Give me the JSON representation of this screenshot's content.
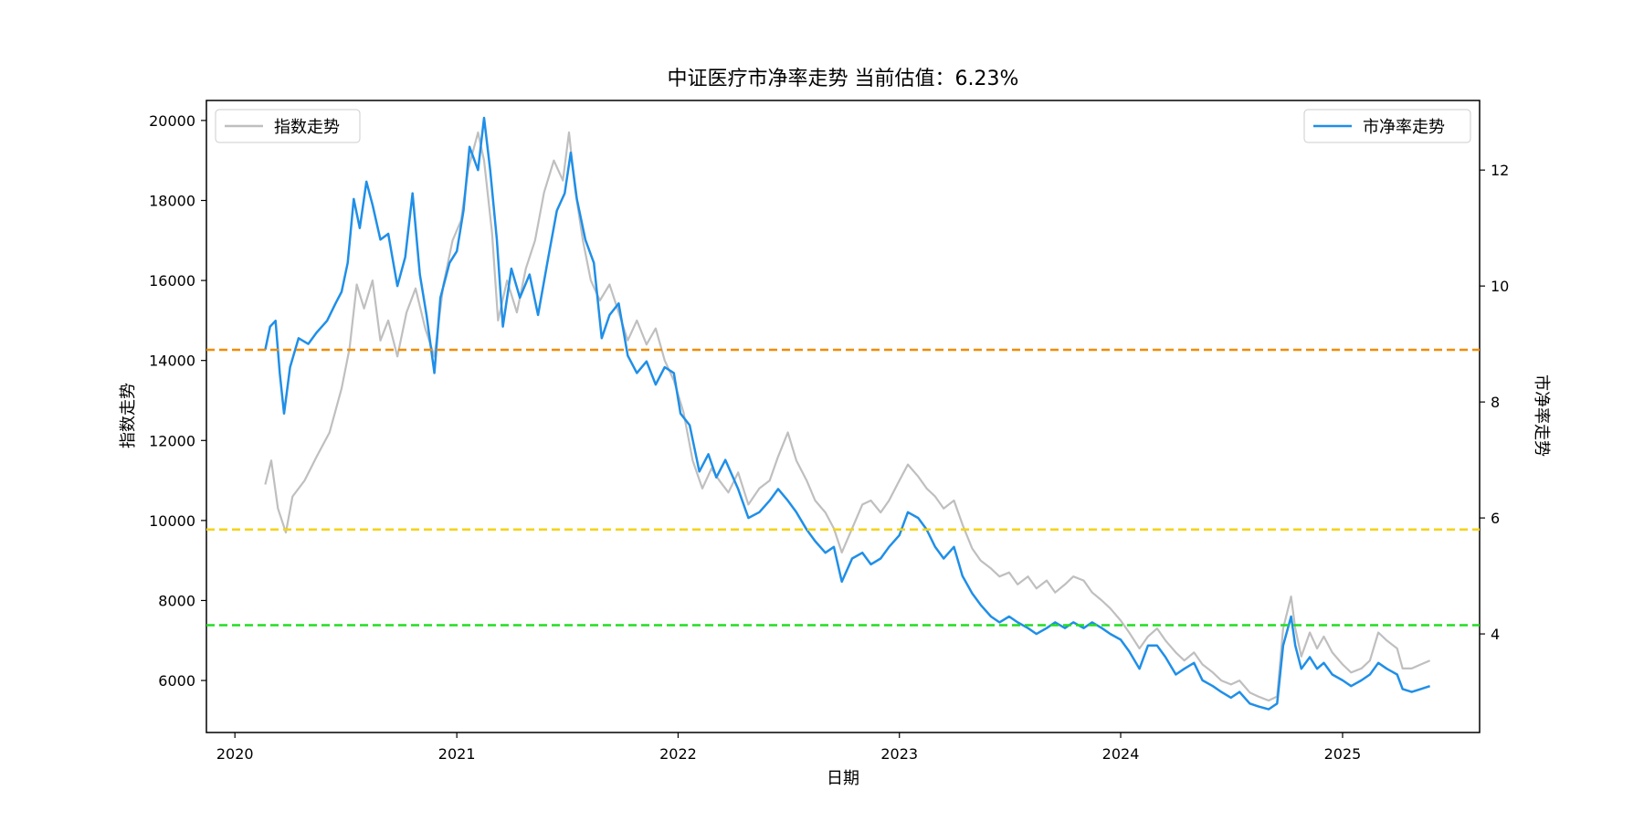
{
  "chart_data": {
    "type": "line",
    "title": "中证医疗市净率走势 当前估值：6.23%",
    "xlabel": "日期",
    "ylabel_left": "指数走势",
    "ylabel_right": "市净率走势",
    "x_ticks": [
      "2020",
      "2021",
      "2022",
      "2023",
      "2024",
      "2025"
    ],
    "x_range": [
      "2019-11-15",
      "2025-08-15"
    ],
    "y_left": {
      "range": [
        4700,
        20500
      ],
      "ticks": [
        6000,
        8000,
        10000,
        12000,
        14000,
        16000,
        18000,
        20000
      ]
    },
    "y_right": {
      "range": [
        2.3,
        13.2
      ],
      "ticks": [
        4,
        6,
        8,
        10,
        12
      ]
    },
    "grid": false,
    "series": [
      {
        "name": "指数走势",
        "axis": "left",
        "color": "#bfbfbf",
        "legend_position": "top-left",
        "points": [
          [
            "2020-02-20",
            10900
          ],
          [
            "2020-03-01",
            11500
          ],
          [
            "2020-03-12",
            10300
          ],
          [
            "2020-03-25",
            9700
          ],
          [
            "2020-04-05",
            10600
          ],
          [
            "2020-04-25",
            11000
          ],
          [
            "2020-05-15",
            11600
          ],
          [
            "2020-06-05",
            12200
          ],
          [
            "2020-06-25",
            13300
          ],
          [
            "2020-07-08",
            14300
          ],
          [
            "2020-07-20",
            15900
          ],
          [
            "2020-08-01",
            15300
          ],
          [
            "2020-08-15",
            16000
          ],
          [
            "2020-08-28",
            14500
          ],
          [
            "2020-09-10",
            15000
          ],
          [
            "2020-09-25",
            14100
          ],
          [
            "2020-10-10",
            15200
          ],
          [
            "2020-10-25",
            15800
          ],
          [
            "2020-11-10",
            14800
          ],
          [
            "2020-11-25",
            14100
          ],
          [
            "2020-12-10",
            15900
          ],
          [
            "2020-12-25",
            17000
          ],
          [
            "2021-01-08",
            17500
          ],
          [
            "2021-01-20",
            18800
          ],
          [
            "2021-02-05",
            19700
          ],
          [
            "2021-02-15",
            19000
          ],
          [
            "2021-02-28",
            17200
          ],
          [
            "2021-03-10",
            15000
          ],
          [
            "2021-03-25",
            16000
          ],
          [
            "2021-04-10",
            15200
          ],
          [
            "2021-04-25",
            16300
          ],
          [
            "2021-05-10",
            17000
          ],
          [
            "2021-05-25",
            18200
          ],
          [
            "2021-06-10",
            19000
          ],
          [
            "2021-06-25",
            18500
          ],
          [
            "2021-07-05",
            19700
          ],
          [
            "2021-07-15",
            18300
          ],
          [
            "2021-07-28",
            17000
          ],
          [
            "2021-08-10",
            16000
          ],
          [
            "2021-08-25",
            15500
          ],
          [
            "2021-09-10",
            15900
          ],
          [
            "2021-09-25",
            15200
          ],
          [
            "2021-10-10",
            14500
          ],
          [
            "2021-10-25",
            15000
          ],
          [
            "2021-11-10",
            14400
          ],
          [
            "2021-11-25",
            14800
          ],
          [
            "2021-12-10",
            14000
          ],
          [
            "2021-12-25",
            13500
          ],
          [
            "2022-01-10",
            12700
          ],
          [
            "2022-01-25",
            11500
          ],
          [
            "2022-02-10",
            10800
          ],
          [
            "2022-02-25",
            11300
          ],
          [
            "2022-03-10",
            11000
          ],
          [
            "2022-03-25",
            10700
          ],
          [
            "2022-04-10",
            11200
          ],
          [
            "2022-04-27",
            10400
          ],
          [
            "2022-05-15",
            10800
          ],
          [
            "2022-06-01",
            11000
          ],
          [
            "2022-06-15",
            11600
          ],
          [
            "2022-07-01",
            12200
          ],
          [
            "2022-07-15",
            11500
          ],
          [
            "2022-08-01",
            11000
          ],
          [
            "2022-08-15",
            10500
          ],
          [
            "2022-09-01",
            10200
          ],
          [
            "2022-09-15",
            9800
          ],
          [
            "2022-09-28",
            9200
          ],
          [
            "2022-10-15",
            9800
          ],
          [
            "2022-11-01",
            10400
          ],
          [
            "2022-11-15",
            10500
          ],
          [
            "2022-12-01",
            10200
          ],
          [
            "2022-12-15",
            10500
          ],
          [
            "2023-01-01",
            11000
          ],
          [
            "2023-01-15",
            11400
          ],
          [
            "2023-02-01",
            11100
          ],
          [
            "2023-02-15",
            10800
          ],
          [
            "2023-03-01",
            10600
          ],
          [
            "2023-03-15",
            10300
          ],
          [
            "2023-04-01",
            10500
          ],
          [
            "2023-04-15",
            9900
          ],
          [
            "2023-05-01",
            9300
          ],
          [
            "2023-05-15",
            9000
          ],
          [
            "2023-06-01",
            8800
          ],
          [
            "2023-06-15",
            8600
          ],
          [
            "2023-07-01",
            8700
          ],
          [
            "2023-07-15",
            8400
          ],
          [
            "2023-08-01",
            8600
          ],
          [
            "2023-08-15",
            8300
          ],
          [
            "2023-09-01",
            8500
          ],
          [
            "2023-09-15",
            8200
          ],
          [
            "2023-10-01",
            8400
          ],
          [
            "2023-10-15",
            8600
          ],
          [
            "2023-11-01",
            8500
          ],
          [
            "2023-11-15",
            8200
          ],
          [
            "2023-12-01",
            8000
          ],
          [
            "2023-12-15",
            7800
          ],
          [
            "2024-01-01",
            7500
          ],
          [
            "2024-01-15",
            7200
          ],
          [
            "2024-02-01",
            6800
          ],
          [
            "2024-02-15",
            7100
          ],
          [
            "2024-03-01",
            7300
          ],
          [
            "2024-03-15",
            7000
          ],
          [
            "2024-04-01",
            6700
          ],
          [
            "2024-04-15",
            6500
          ],
          [
            "2024-05-01",
            6700
          ],
          [
            "2024-05-15",
            6400
          ],
          [
            "2024-06-01",
            6200
          ],
          [
            "2024-06-15",
            6000
          ],
          [
            "2024-07-01",
            5900
          ],
          [
            "2024-07-15",
            6000
          ],
          [
            "2024-08-01",
            5700
          ],
          [
            "2024-08-15",
            5600
          ],
          [
            "2024-09-01",
            5500
          ],
          [
            "2024-09-15",
            5600
          ],
          [
            "2024-09-25",
            7300
          ],
          [
            "2024-10-08",
            8100
          ],
          [
            "2024-10-15",
            7300
          ],
          [
            "2024-10-25",
            6600
          ],
          [
            "2024-11-08",
            7200
          ],
          [
            "2024-11-20",
            6800
          ],
          [
            "2024-12-01",
            7100
          ],
          [
            "2024-12-15",
            6700
          ],
          [
            "2025-01-01",
            6400
          ],
          [
            "2025-01-15",
            6200
          ],
          [
            "2025-02-01",
            6300
          ],
          [
            "2025-02-15",
            6500
          ],
          [
            "2025-03-01",
            7200
          ],
          [
            "2025-03-15",
            7000
          ],
          [
            "2025-04-01",
            6800
          ],
          [
            "2025-04-10",
            6300
          ],
          [
            "2025-04-25",
            6300
          ],
          [
            "2025-05-10",
            6400
          ],
          [
            "2025-05-25",
            6500
          ]
        ]
      },
      {
        "name": "市净率走势",
        "axis": "right",
        "color": "#1f8fe8",
        "legend_position": "top-right",
        "points": [
          [
            "2020-02-20",
            8.9
          ],
          [
            "2020-02-28",
            9.3
          ],
          [
            "2020-03-08",
            9.4
          ],
          [
            "2020-03-15",
            8.5
          ],
          [
            "2020-03-22",
            7.8
          ],
          [
            "2020-04-01",
            8.6
          ],
          [
            "2020-04-15",
            9.1
          ],
          [
            "2020-05-01",
            9.0
          ],
          [
            "2020-05-15",
            9.2
          ],
          [
            "2020-06-01",
            9.4
          ],
          [
            "2020-06-15",
            9.7
          ],
          [
            "2020-06-25",
            9.9
          ],
          [
            "2020-07-05",
            10.4
          ],
          [
            "2020-07-15",
            11.5
          ],
          [
            "2020-07-25",
            11.0
          ],
          [
            "2020-08-05",
            11.8
          ],
          [
            "2020-08-15",
            11.4
          ],
          [
            "2020-08-28",
            10.8
          ],
          [
            "2020-09-10",
            10.9
          ],
          [
            "2020-09-25",
            10.0
          ],
          [
            "2020-10-08",
            10.5
          ],
          [
            "2020-10-20",
            11.6
          ],
          [
            "2020-11-01",
            10.2
          ],
          [
            "2020-11-12",
            9.5
          ],
          [
            "2020-11-25",
            8.5
          ],
          [
            "2020-12-05",
            9.8
          ],
          [
            "2020-12-20",
            10.4
          ],
          [
            "2021-01-01",
            10.6
          ],
          [
            "2021-01-12",
            11.3
          ],
          [
            "2021-01-22",
            12.4
          ],
          [
            "2021-02-05",
            12.0
          ],
          [
            "2021-02-15",
            12.9
          ],
          [
            "2021-02-25",
            12.0
          ],
          [
            "2021-03-08",
            10.8
          ],
          [
            "2021-03-18",
            9.3
          ],
          [
            "2021-04-01",
            10.3
          ],
          [
            "2021-04-15",
            9.8
          ],
          [
            "2021-05-01",
            10.2
          ],
          [
            "2021-05-15",
            9.5
          ],
          [
            "2021-06-01",
            10.5
          ],
          [
            "2021-06-15",
            11.3
          ],
          [
            "2021-06-28",
            11.6
          ],
          [
            "2021-07-08",
            12.3
          ],
          [
            "2021-07-18",
            11.5
          ],
          [
            "2021-08-01",
            10.8
          ],
          [
            "2021-08-15",
            10.4
          ],
          [
            "2021-08-28",
            9.1
          ],
          [
            "2021-09-10",
            9.5
          ],
          [
            "2021-09-25",
            9.7
          ],
          [
            "2021-10-10",
            8.8
          ],
          [
            "2021-10-25",
            8.5
          ],
          [
            "2021-11-10",
            8.7
          ],
          [
            "2021-11-25",
            8.3
          ],
          [
            "2021-12-10",
            8.6
          ],
          [
            "2021-12-25",
            8.5
          ],
          [
            "2022-01-05",
            7.8
          ],
          [
            "2022-01-20",
            7.6
          ],
          [
            "2022-02-05",
            6.8
          ],
          [
            "2022-02-20",
            7.1
          ],
          [
            "2022-03-05",
            6.7
          ],
          [
            "2022-03-20",
            7.0
          ],
          [
            "2022-04-10",
            6.5
          ],
          [
            "2022-04-27",
            6.0
          ],
          [
            "2022-05-15",
            6.1
          ],
          [
            "2022-06-01",
            6.3
          ],
          [
            "2022-06-15",
            6.5
          ],
          [
            "2022-07-01",
            6.3
          ],
          [
            "2022-07-15",
            6.1
          ],
          [
            "2022-08-01",
            5.8
          ],
          [
            "2022-08-15",
            5.6
          ],
          [
            "2022-09-01",
            5.4
          ],
          [
            "2022-09-15",
            5.5
          ],
          [
            "2022-09-28",
            4.9
          ],
          [
            "2022-10-15",
            5.3
          ],
          [
            "2022-11-01",
            5.4
          ],
          [
            "2022-11-15",
            5.2
          ],
          [
            "2022-12-01",
            5.3
          ],
          [
            "2022-12-15",
            5.5
          ],
          [
            "2023-01-01",
            5.7
          ],
          [
            "2023-01-15",
            6.1
          ],
          [
            "2023-02-01",
            6.0
          ],
          [
            "2023-02-15",
            5.8
          ],
          [
            "2023-03-01",
            5.5
          ],
          [
            "2023-03-15",
            5.3
          ],
          [
            "2023-04-01",
            5.5
          ],
          [
            "2023-04-15",
            5.0
          ],
          [
            "2023-05-01",
            4.7
          ],
          [
            "2023-05-15",
            4.5
          ],
          [
            "2023-06-01",
            4.3
          ],
          [
            "2023-06-15",
            4.2
          ],
          [
            "2023-07-01",
            4.3
          ],
          [
            "2023-07-15",
            4.2
          ],
          [
            "2023-08-01",
            4.1
          ],
          [
            "2023-08-15",
            4.0
          ],
          [
            "2023-09-01",
            4.1
          ],
          [
            "2023-09-15",
            4.2
          ],
          [
            "2023-10-01",
            4.1
          ],
          [
            "2023-10-15",
            4.2
          ],
          [
            "2023-11-01",
            4.1
          ],
          [
            "2023-11-15",
            4.2
          ],
          [
            "2023-12-01",
            4.1
          ],
          [
            "2023-12-15",
            4.0
          ],
          [
            "2024-01-01",
            3.9
          ],
          [
            "2024-01-15",
            3.7
          ],
          [
            "2024-02-01",
            3.4
          ],
          [
            "2024-02-15",
            3.8
          ],
          [
            "2024-03-01",
            3.8
          ],
          [
            "2024-03-15",
            3.6
          ],
          [
            "2024-04-01",
            3.3
          ],
          [
            "2024-04-15",
            3.4
          ],
          [
            "2024-05-01",
            3.5
          ],
          [
            "2024-05-15",
            3.2
          ],
          [
            "2024-06-01",
            3.1
          ],
          [
            "2024-06-15",
            3.0
          ],
          [
            "2024-07-01",
            2.9
          ],
          [
            "2024-07-15",
            3.0
          ],
          [
            "2024-08-01",
            2.8
          ],
          [
            "2024-08-15",
            2.75
          ],
          [
            "2024-09-01",
            2.7
          ],
          [
            "2024-09-15",
            2.8
          ],
          [
            "2024-09-25",
            3.8
          ],
          [
            "2024-10-08",
            4.3
          ],
          [
            "2024-10-15",
            3.8
          ],
          [
            "2024-10-25",
            3.4
          ],
          [
            "2024-11-08",
            3.6
          ],
          [
            "2024-11-20",
            3.4
          ],
          [
            "2024-12-01",
            3.5
          ],
          [
            "2024-12-15",
            3.3
          ],
          [
            "2025-01-01",
            3.2
          ],
          [
            "2025-01-15",
            3.1
          ],
          [
            "2025-02-01",
            3.2
          ],
          [
            "2025-02-15",
            3.3
          ],
          [
            "2025-03-01",
            3.5
          ],
          [
            "2025-03-15",
            3.4
          ],
          [
            "2025-04-01",
            3.3
          ],
          [
            "2025-04-10",
            3.05
          ],
          [
            "2025-04-25",
            3.0
          ],
          [
            "2025-05-10",
            3.05
          ],
          [
            "2025-05-25",
            3.1
          ]
        ]
      }
    ],
    "reference_lines": [
      {
        "axis": "right",
        "value": 8.9,
        "color": "#f08c00",
        "style": "dashed"
      },
      {
        "axis": "right",
        "value": 5.8,
        "color": "#f5d316",
        "style": "dashed"
      },
      {
        "axis": "right",
        "value": 4.15,
        "color": "#22dd22",
        "style": "dashed"
      }
    ]
  }
}
